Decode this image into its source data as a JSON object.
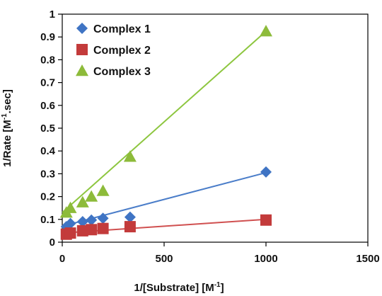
{
  "chart_data": {
    "type": "scatter",
    "xlabel": "1/[Substrate] [M",
    "xlabel_sup": "-1",
    "xlabel_end": "]",
    "ylabel": "1/Rate [M",
    "ylabel_sup": "-1",
    "ylabel_end": ".sec]",
    "xlim": [
      0,
      1500
    ],
    "ylim": [
      0,
      1
    ],
    "xticks": [
      "0",
      "500",
      "1000",
      "1500"
    ],
    "yticks": [
      "0",
      "0.1",
      "0.2",
      "0.3",
      "0.4",
      "0.5",
      "0.6",
      "0.7",
      "0.8",
      "0.9",
      "1"
    ],
    "xtick_values": [
      0,
      500,
      1000,
      1500
    ],
    "ytick_values": [
      0,
      0.1,
      0.2,
      0.3,
      0.4,
      0.5,
      0.6,
      0.7,
      0.8,
      0.9,
      1
    ],
    "grid": false,
    "legend_position": "top-left",
    "series": [
      {
        "name": "Complex 1",
        "marker": "diamond",
        "color": "#3f74c4",
        "line_color": "#4a7dc9",
        "x": [
          20,
          40,
          100,
          143,
          200,
          333,
          1000
        ],
        "y": [
          0.068,
          0.082,
          0.09,
          0.097,
          0.105,
          0.11,
          0.308
        ],
        "trendline": [
          [
            0,
            0.07
          ],
          [
            1000,
            0.305
          ]
        ]
      },
      {
        "name": "Complex 2",
        "marker": "square",
        "color": "#c33b3b",
        "line_color": "#d05050",
        "x": [
          20,
          40,
          100,
          143,
          200,
          333,
          1000
        ],
        "y": [
          0.035,
          0.04,
          0.05,
          0.055,
          0.06,
          0.068,
          0.097
        ],
        "trendline": [
          [
            0,
            0.04
          ],
          [
            1000,
            0.1
          ]
        ]
      },
      {
        "name": "Complex 3",
        "marker": "triangle",
        "color": "#8dbb3a",
        "line_color": "#8dc63f",
        "x": [
          20,
          40,
          100,
          143,
          200,
          333,
          1000
        ],
        "y": [
          0.13,
          0.15,
          0.175,
          0.2,
          0.225,
          0.375,
          0.925
        ],
        "trendline": [
          [
            0,
            0.13
          ],
          [
            1000,
            0.925
          ]
        ]
      }
    ]
  }
}
